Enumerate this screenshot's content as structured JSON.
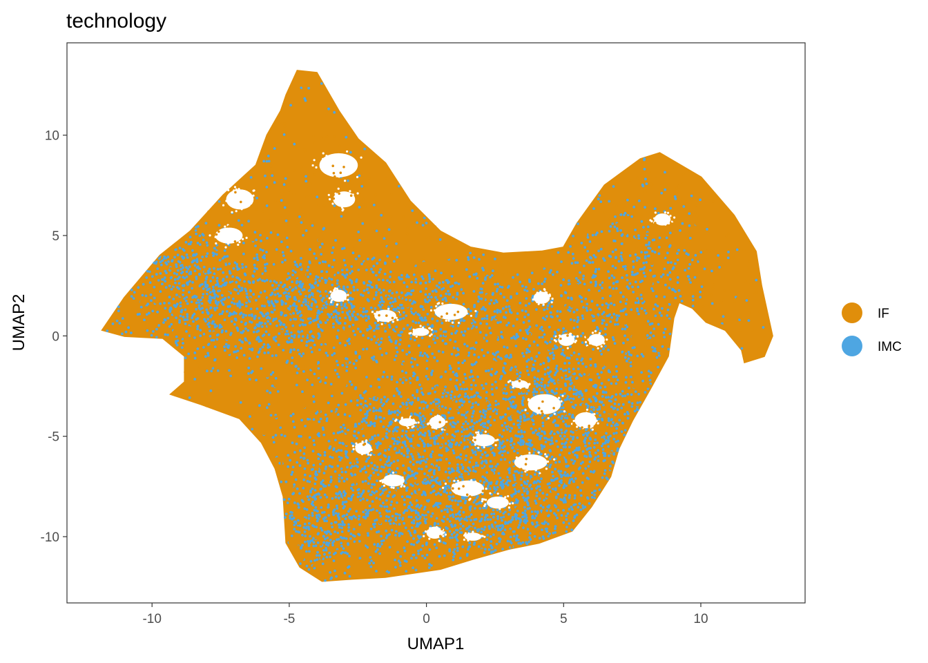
{
  "chart_data": {
    "type": "scatter",
    "title": "technology",
    "xlabel": "UMAP1",
    "ylabel": "UMAP2",
    "xlim": [
      -13.1,
      13.8
    ],
    "ylim": [
      -13.3,
      14.6
    ],
    "xticks": [
      -10,
      -5,
      0,
      5,
      10
    ],
    "xtick_labels": [
      "-10",
      "-5",
      "0",
      "5",
      "10"
    ],
    "yticks": [
      -10,
      -5,
      0,
      5,
      10
    ],
    "ytick_labels": [
      "-10",
      "-5",
      "0",
      "5",
      "10"
    ],
    "grid": false,
    "legend_position": "right",
    "series": [
      {
        "name": "IF",
        "color": "#E08E0B"
      },
      {
        "name": "IMC",
        "color": "#4EA6E2"
      }
    ],
    "cloud_outline": [
      [
        -11.8,
        0.3
      ],
      [
        -11.0,
        1.9
      ],
      [
        -9.7,
        4.0
      ],
      [
        -8.6,
        5.2
      ],
      [
        -7.4,
        7.0
      ],
      [
        -6.2,
        8.5
      ],
      [
        -5.8,
        10.0
      ],
      [
        -5.3,
        11.2
      ],
      [
        -5.1,
        12.0
      ],
      [
        -4.7,
        13.2
      ],
      [
        -4.0,
        13.1
      ],
      [
        -3.2,
        11.2
      ],
      [
        -2.5,
        9.8
      ],
      [
        -1.5,
        8.6
      ],
      [
        -0.6,
        6.7
      ],
      [
        0.5,
        5.2
      ],
      [
        1.6,
        4.4
      ],
      [
        2.8,
        4.1
      ],
      [
        4.2,
        4.2
      ],
      [
        5.0,
        4.4
      ],
      [
        5.5,
        5.6
      ],
      [
        6.5,
        7.5
      ],
      [
        7.8,
        8.8
      ],
      [
        8.5,
        9.1
      ],
      [
        10.0,
        7.9
      ],
      [
        11.2,
        6.0
      ],
      [
        12.0,
        4.2
      ],
      [
        12.2,
        2.5
      ],
      [
        12.6,
        0.0
      ],
      [
        12.3,
        -1.0
      ],
      [
        11.6,
        -1.3
      ],
      [
        11.5,
        -0.7
      ],
      [
        10.9,
        0.3
      ],
      [
        10.2,
        0.7
      ],
      [
        9.7,
        1.4
      ],
      [
        9.2,
        1.7
      ],
      [
        9.0,
        0.9
      ],
      [
        8.8,
        -1.0
      ],
      [
        8.2,
        -2.5
      ],
      [
        7.5,
        -4.2
      ],
      [
        7.0,
        -5.6
      ],
      [
        6.7,
        -7.0
      ],
      [
        6.0,
        -8.5
      ],
      [
        5.3,
        -9.7
      ],
      [
        4.1,
        -10.3
      ],
      [
        3.0,
        -10.6
      ],
      [
        1.7,
        -11.1
      ],
      [
        0.5,
        -11.6
      ],
      [
        -1.5,
        -12.0
      ],
      [
        -2.8,
        -12.1
      ],
      [
        -3.8,
        -12.2
      ],
      [
        -4.6,
        -11.5
      ],
      [
        -5.1,
        -10.3
      ],
      [
        -5.2,
        -8.0
      ],
      [
        -5.5,
        -6.6
      ],
      [
        -6.0,
        -5.3
      ],
      [
        -6.8,
        -4.1
      ],
      [
        -8.2,
        -3.4
      ],
      [
        -9.3,
        -2.9
      ],
      [
        -8.8,
        -2.3
      ],
      [
        -8.8,
        -1.0
      ],
      [
        -9.6,
        -0.1
      ],
      [
        -11.0,
        0.0
      ],
      [
        -11.8,
        0.3
      ]
    ]
  },
  "legend": {
    "items": [
      {
        "label": "IF",
        "color": "#E08E0B"
      },
      {
        "label": "IMC",
        "color": "#4EA6E2"
      }
    ]
  }
}
